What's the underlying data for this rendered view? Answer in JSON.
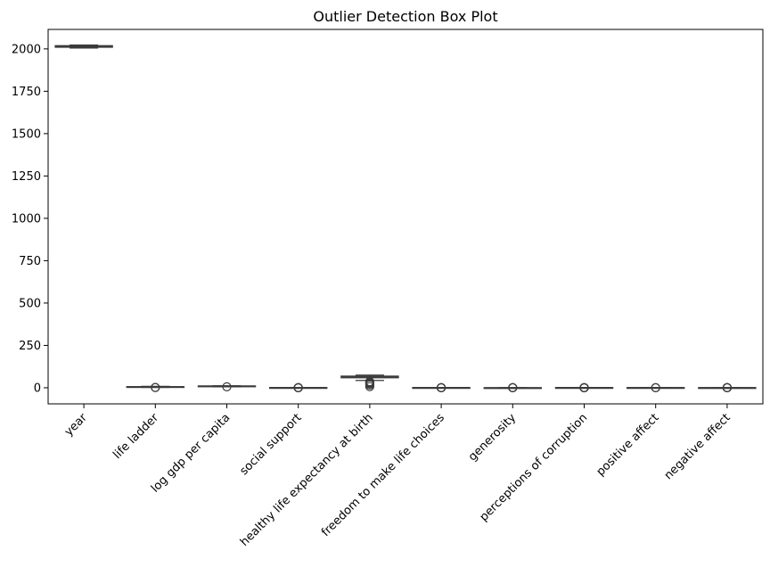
{
  "chart_data": {
    "type": "box",
    "title": "Outlier Detection Box Plot",
    "xlabel": "",
    "ylabel": "",
    "ylim": [
      -95,
      2115
    ],
    "yticks": [
      0,
      250,
      500,
      750,
      1000,
      1250,
      1500,
      1750,
      2000
    ],
    "ytick_labels": [
      "0",
      "250",
      "500",
      "750",
      "1000",
      "1250",
      "1500",
      "1750",
      "2000"
    ],
    "grid": false,
    "box_color": "#3b3b3b",
    "categories": [
      "year",
      "life ladder",
      "log gdp per capita",
      "social support",
      "healthy life expectancy at birth",
      "freedom to make life choices",
      "generosity",
      "perceptions of corruption",
      "positive affect",
      "negative affect"
    ],
    "boxes": [
      {
        "min": 2005,
        "q1": 2010,
        "median": 2015,
        "q3": 2019,
        "max": 2023,
        "outliers": []
      },
      {
        "min": 2.4,
        "q1": 4.6,
        "median": 5.4,
        "q3": 6.3,
        "max": 8.0,
        "outliers": [
          1.3,
          1.8
        ]
      },
      {
        "min": 5.5,
        "q1": 8.5,
        "median": 9.5,
        "q3": 10.4,
        "max": 11.7,
        "outliers": [
          5.5
        ]
      },
      {
        "min": 0.43,
        "q1": 0.75,
        "median": 0.83,
        "q3": 0.9,
        "max": 0.99,
        "outliers": [
          0.23,
          0.29,
          0.33,
          0.36,
          0.39
        ]
      },
      {
        "min": 43,
        "q1": 59,
        "median": 65,
        "q3": 68.5,
        "max": 74.5,
        "outliers": [
          6.7,
          17,
          24,
          29,
          33,
          36
        ]
      },
      {
        "min": 0.38,
        "q1": 0.66,
        "median": 0.77,
        "q3": 0.86,
        "max": 0.99,
        "outliers": [
          0.23,
          0.26,
          0.3,
          0.33
        ]
      },
      {
        "min": -0.33,
        "q1": -0.11,
        "median": -0.02,
        "q3": 0.09,
        "max": 0.39,
        "outliers": [
          0.42,
          0.5,
          0.6,
          0.7
        ]
      },
      {
        "min": 0.44,
        "q1": 0.69,
        "median": 0.8,
        "q3": 0.87,
        "max": 0.98,
        "outliers": [
          0.04,
          0.1,
          0.17,
          0.22,
          0.3,
          0.35,
          0.41
        ]
      },
      {
        "min": 0.3,
        "q1": 0.57,
        "median": 0.66,
        "q3": 0.74,
        "max": 0.88,
        "outliers": [
          0.18,
          0.25
        ]
      },
      {
        "min": 0.08,
        "q1": 0.21,
        "median": 0.26,
        "q3": 0.33,
        "max": 0.5,
        "outliers": [
          0.52,
          0.55,
          0.6,
          0.65,
          0.7
        ]
      }
    ]
  }
}
